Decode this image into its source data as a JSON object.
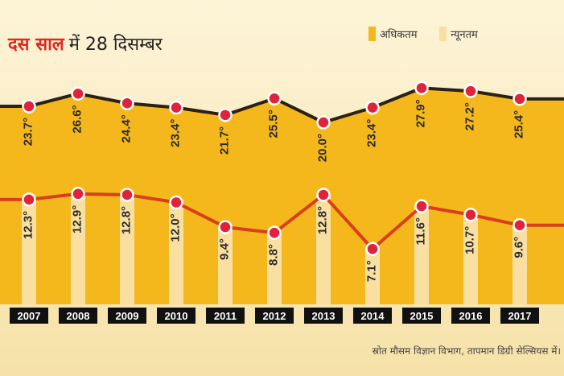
{
  "chart_data": {
    "type": "line",
    "title_highlight": "दस साल",
    "title_rest": "में 28 दिसम्बर",
    "categories": [
      "2007",
      "2008",
      "2009",
      "2010",
      "2011",
      "2012",
      "2013",
      "2014",
      "2015",
      "2016",
      "2017"
    ],
    "series": [
      {
        "name": "अधिकतम",
        "values": [
          23.7,
          26.6,
          24.4,
          23.4,
          21.7,
          25.5,
          20.0,
          23.4,
          27.9,
          27.2,
          25.4
        ],
        "labels": [
          "23.7°",
          "26.6°",
          "24.4°",
          "23.4°",
          "21.7°",
          "25.5°",
          "20.0°",
          "23.4°",
          "27.9°",
          "27.2°",
          "25.4°"
        ],
        "fill_color": "#f5b81c",
        "line_color": "#2b2118"
      },
      {
        "name": "न्यूनतम",
        "values": [
          12.3,
          12.9,
          12.8,
          12.0,
          9.4,
          8.8,
          12.8,
          7.1,
          11.6,
          10.7,
          9.6
        ],
        "labels": [
          "12.3°",
          "12.9°",
          "12.8°",
          "12.0°",
          "9.4°",
          "8.8°",
          "12.8°",
          "7.1°",
          "11.6°",
          "10.7°",
          "9.6°"
        ],
        "fill_color": "#f9e0a0",
        "line_color": "#d8401c"
      }
    ],
    "ylim": [
      0,
      40
    ],
    "source": "स्रोत मौसम विज्ञान विभाग, तापमान डिग्री सेल्सियस में।"
  },
  "colors": {
    "title_highlight": "#e2261e",
    "title_rest": "#222222",
    "marker": "#e0223a",
    "tick_bg": "#111111"
  }
}
